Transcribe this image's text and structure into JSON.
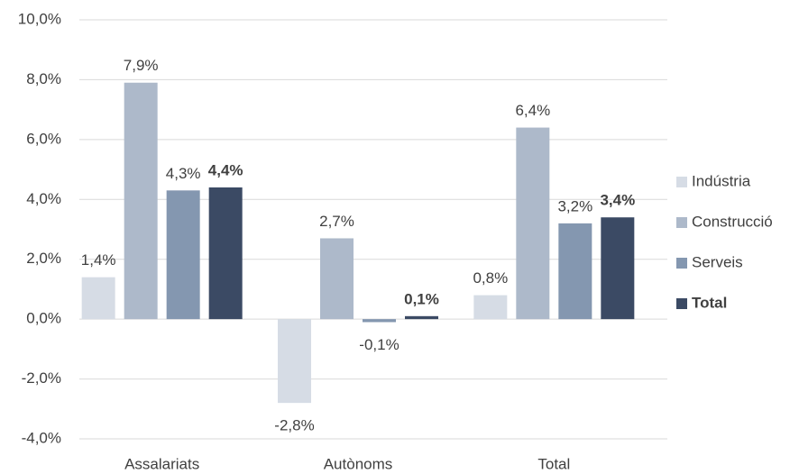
{
  "chart_data": {
    "type": "bar",
    "categories": [
      "Assalariats",
      "Autònoms",
      "Total"
    ],
    "series": [
      {
        "name": "Indústria",
        "color": "#d6dce5",
        "values": [
          1.4,
          -2.8,
          0.8
        ],
        "value_labels": [
          "1,4%",
          "-2,8%",
          "0,8%"
        ]
      },
      {
        "name": "Construcció",
        "color": "#adb9ca",
        "values": [
          7.9,
          2.7,
          6.4
        ],
        "value_labels": [
          "7,9%",
          "2,7%",
          "6,4%"
        ]
      },
      {
        "name": "Serveis",
        "color": "#8497b0",
        "values": [
          4.3,
          -0.1,
          3.2
        ],
        "value_labels": [
          "4,3%",
          "-0,1%",
          "3,2%"
        ]
      },
      {
        "name": "Total",
        "color": "#3b4a64",
        "bold": true,
        "values": [
          4.4,
          0.1,
          3.4
        ],
        "value_labels": [
          "4,4%",
          "0,1%",
          "3,4%"
        ]
      }
    ],
    "ylim": [
      -4,
      10
    ],
    "yticks": [
      {
        "value": -4,
        "label": "-4,0%"
      },
      {
        "value": -2,
        "label": "-2,0%"
      },
      {
        "value": 0,
        "label": "0,0%"
      },
      {
        "value": 2,
        "label": "2,0%"
      },
      {
        "value": 4,
        "label": "4,0%"
      },
      {
        "value": 6,
        "label": "6,0%"
      },
      {
        "value": 8,
        "label": "8,0%"
      },
      {
        "value": 10,
        "label": "10,0%"
      }
    ],
    "grid": true,
    "legend": "right"
  }
}
